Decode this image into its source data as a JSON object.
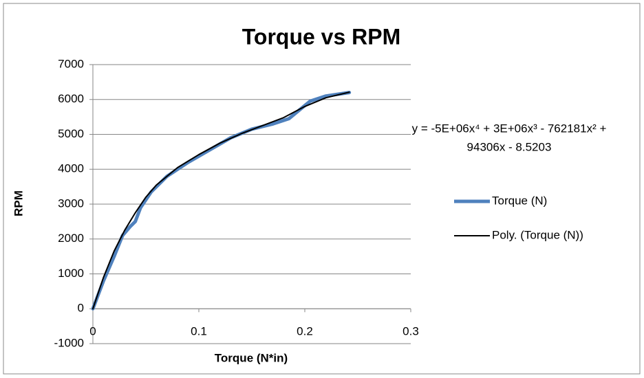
{
  "chart_data": {
    "type": "line",
    "title": "Torque vs RPM",
    "x_label": "Torque (N*in)",
    "y_label": "RPM",
    "xlim": [
      0,
      0.3
    ],
    "xticks": [
      0,
      0.1,
      0.2,
      0.3
    ],
    "ylim": [
      -1000,
      7000
    ],
    "yticks": [
      -1000,
      0,
      1000,
      2000,
      3000,
      4000,
      5000,
      6000,
      7000
    ],
    "grid": true,
    "legend": "right",
    "annotation": [
      "y = -5E+06x⁴ + 3E+06x³ - 762181x² +",
      "94306x - 8.5203"
    ],
    "series": [
      {
        "name": "Torque (N)",
        "color": "#4f81bd",
        "x": [
          0,
          0.01,
          0.02,
          0.028,
          0.035,
          0.04,
          0.045,
          0.055,
          0.07,
          0.09,
          0.11,
          0.13,
          0.15,
          0.17,
          0.185,
          0.195,
          0.205,
          0.22,
          0.242
        ],
        "values": [
          0,
          800,
          1500,
          2100,
          2350,
          2500,
          2900,
          3350,
          3800,
          4200,
          4550,
          4900,
          5150,
          5300,
          5450,
          5700,
          5950,
          6100,
          6200
        ]
      },
      {
        "name": "Poly. (Torque (N))",
        "color": "#000000",
        "x": [
          0,
          0.01,
          0.02,
          0.03,
          0.04,
          0.05,
          0.06,
          0.08,
          0.1,
          0.12,
          0.14,
          0.16,
          0.18,
          0.2,
          0.22,
          0.242
        ],
        "values": [
          0,
          900,
          1650,
          2250,
          2750,
          3200,
          3550,
          4050,
          4420,
          4750,
          5020,
          5250,
          5480,
          5800,
          6050,
          6210
        ]
      }
    ]
  }
}
